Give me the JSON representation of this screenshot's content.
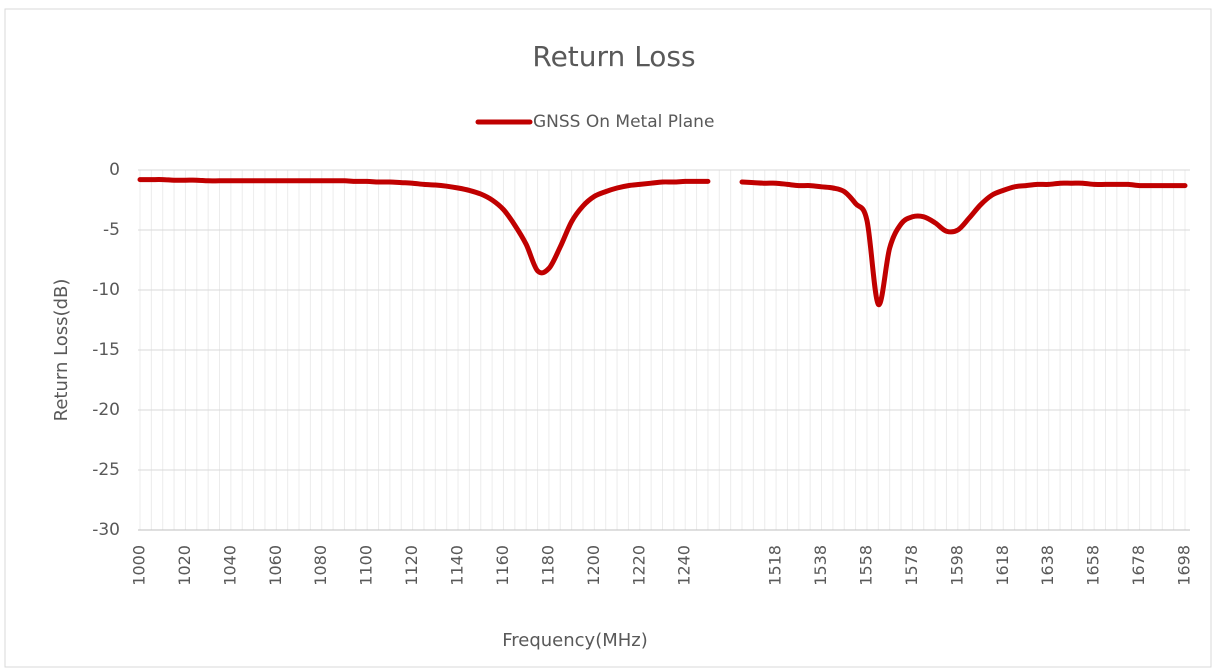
{
  "chart_data": {
    "type": "line",
    "title": "Return Loss",
    "x_label": "Frequency(MHz)",
    "y_label": "Return Loss(dB)",
    "categories": [
      1000,
      null,
      null,
      null,
      1020,
      null,
      null,
      null,
      1040,
      null,
      null,
      null,
      1060,
      null,
      null,
      null,
      1080,
      null,
      null,
      null,
      1100,
      null,
      null,
      null,
      1120,
      null,
      null,
      null,
      1140,
      null,
      null,
      null,
      1160,
      null,
      null,
      null,
      1180,
      null,
      null,
      null,
      1200,
      null,
      null,
      null,
      1220,
      null,
      null,
      null,
      1240,
      null,
      null,
      null,
      null,
      null,
      null,
      null,
      1518,
      null,
      null,
      null,
      1538,
      null,
      null,
      null,
      1558,
      null,
      null,
      null,
      1578,
      null,
      null,
      null,
      1598,
      null,
      null,
      null,
      1618,
      null,
      null,
      null,
      1638,
      null,
      null,
      null,
      1658,
      null,
      null,
      null,
      1678,
      null,
      null,
      null,
      1698
    ],
    "series": [
      {
        "name": "GNSS On Metal Plane",
        "color": "#c00000",
        "values": [
          -0.8,
          -0.8,
          -0.8,
          -0.85,
          -0.85,
          -0.85,
          -0.9,
          -0.9,
          -0.9,
          -0.9,
          -0.9,
          -0.9,
          -0.9,
          -0.9,
          -0.9,
          -0.9,
          -0.9,
          -0.9,
          -0.9,
          -0.95,
          -0.95,
          -1.0,
          -1.0,
          -1.05,
          -1.1,
          -1.2,
          -1.25,
          -1.35,
          -1.5,
          -1.7,
          -2.0,
          -2.5,
          -3.3,
          -4.6,
          -6.2,
          -8.4,
          -8.2,
          -6.4,
          -4.3,
          -3.0,
          -2.2,
          -1.8,
          -1.5,
          -1.3,
          -1.2,
          -1.1,
          -1.0,
          -1.0,
          -0.95,
          -0.95,
          -0.95,
          null,
          null,
          -1.0,
          -1.05,
          -1.1,
          -1.1,
          -1.2,
          -1.3,
          -1.3,
          -1.4,
          -1.5,
          -1.8,
          -2.8,
          -4.2,
          -11.2,
          -6.5,
          -4.5,
          -3.9,
          -3.9,
          -4.4,
          -5.1,
          -5.0,
          -4.0,
          -2.9,
          -2.1,
          -1.7,
          -1.4,
          -1.3,
          -1.2,
          -1.2,
          -1.1,
          -1.1,
          -1.1,
          -1.2,
          -1.2,
          -1.2,
          -1.2,
          -1.3,
          -1.3,
          -1.3,
          -1.3,
          -1.3
        ]
      }
    ],
    "ylim": [
      -30,
      0
    ],
    "yticks": [
      0,
      -5,
      -10,
      -15,
      -20,
      -25,
      -30
    ],
    "grid": true,
    "legend": "top"
  }
}
